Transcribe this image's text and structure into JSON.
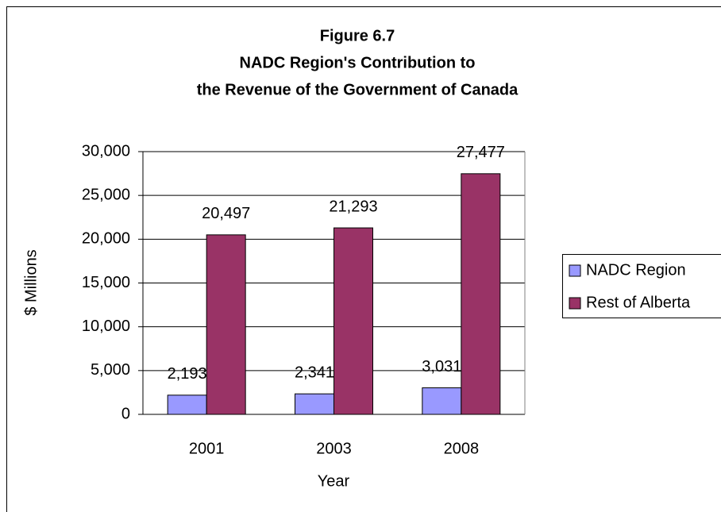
{
  "chart_data": {
    "type": "bar",
    "title": [
      "Figure 6.7",
      "NADC Region's Contribution to",
      "the Revenue of the Government of Canada"
    ],
    "x_label": "Year",
    "y_label": "$ Millions",
    "categories": [
      "2001",
      "2003",
      "2008"
    ],
    "series": [
      {
        "name": "NADC Region",
        "color": "#9999ff",
        "values": [
          2193,
          2341,
          3031
        ],
        "value_labels": [
          "2,193",
          "2,341",
          "3,031"
        ]
      },
      {
        "name": "Rest of Alberta",
        "color": "#993366",
        "values": [
          20497,
          21293,
          27477
        ],
        "value_labels": [
          "20,497",
          "21,293",
          "27,477"
        ]
      }
    ],
    "ylim": [
      0,
      30000
    ],
    "yticks": [
      0,
      {
        "value": 5000,
        "label": "5,000"
      },
      {
        "value": 10000,
        "label": "10,000"
      },
      {
        "value": 15000,
        "label": "15,000"
      },
      {
        "value": 20000,
        "label": "20,000"
      },
      {
        "value": 25000,
        "label": "25,000"
      },
      {
        "value": 30000,
        "label": "30,000"
      }
    ],
    "grid": true,
    "legend": "right"
  }
}
